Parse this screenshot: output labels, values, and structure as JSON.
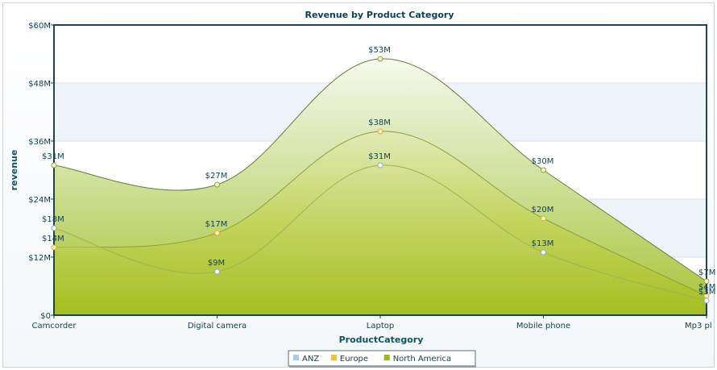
{
  "chart_data": {
    "type": "area",
    "title": "Revenue by Product Category",
    "xlabel": "ProductCategory",
    "ylabel": "revenue",
    "categories": [
      "Camcorder",
      "Digital camera",
      "Laptop",
      "Mobile phone",
      "Mp3 pl"
    ],
    "ylim": [
      0,
      60
    ],
    "yticks": [
      0,
      12,
      24,
      36,
      48,
      60
    ],
    "ytick_labels": [
      "$0",
      "$12M",
      "$24M",
      "$36M",
      "$48M",
      "$60M"
    ],
    "grid": true,
    "legend_position": "bottom-center",
    "series": [
      {
        "name": "ANZ",
        "color": "#a9cbe3",
        "values": [
          18,
          9,
          31,
          13,
          3
        ],
        "labels": [
          "$18M",
          "$9M",
          "$31M",
          "$13M",
          "$3M"
        ]
      },
      {
        "name": "Europe",
        "color": "#f2c230",
        "values": [
          14,
          17,
          38,
          20,
          4
        ],
        "labels": [
          "$14M",
          "$17M",
          "$38M",
          "$20M",
          "$4M"
        ]
      },
      {
        "name": "North America",
        "color": "#9ab91e",
        "values": [
          31,
          27,
          53,
          30,
          7
        ],
        "labels": [
          "$31M",
          "$27M",
          "$53M",
          "$30M",
          "$7M"
        ]
      }
    ]
  }
}
